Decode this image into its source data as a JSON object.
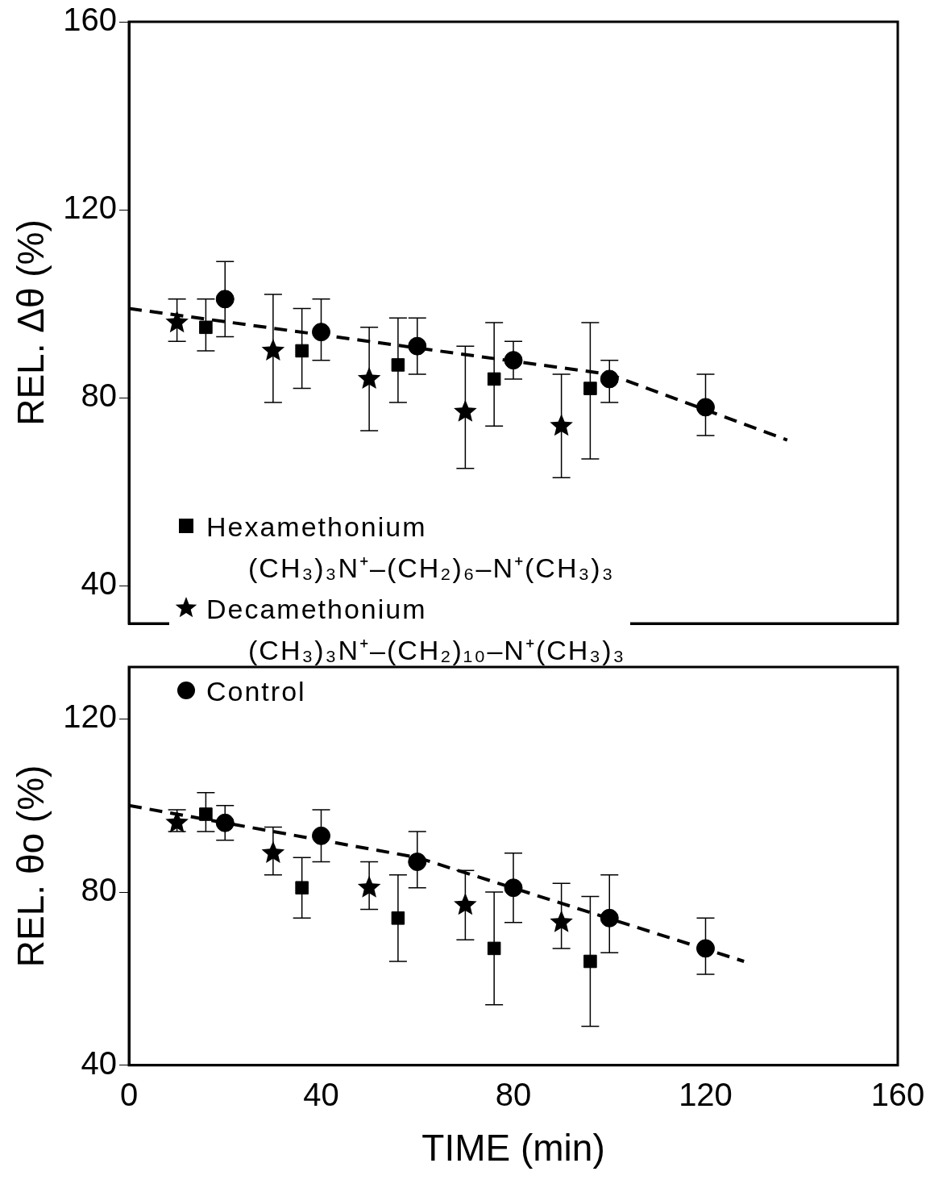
{
  "chart_data": [
    {
      "type": "scatter",
      "ylabel": "REL. Δθ (%)",
      "xlim": [
        0,
        160
      ],
      "xticks": [
        0,
        40,
        80,
        120,
        160
      ],
      "ylim": [
        32,
        160
      ],
      "yticks": [
        40,
        80,
        120,
        160
      ],
      "tick_labels": "y",
      "grid": false,
      "legend": "bottom left",
      "series": [
        {
          "name": "Hexamethonium\n(CH₃)₃N⁺–(CH₂)₆–N⁺(CH₃)₃",
          "color": "#000000",
          "marker": "square",
          "x": [
            16,
            36,
            56,
            76,
            96
          ],
          "values": [
            95,
            90,
            87,
            84,
            82
          ],
          "errors": [
            [
              90,
              101
            ],
            [
              82,
              99
            ],
            [
              79,
              97
            ],
            [
              74,
              96
            ],
            [
              67,
              96
            ]
          ]
        },
        {
          "name": "Decamethonium\n(CH₃)₃N⁺–(CH₂)₁₀–N⁺(CH₃)₃",
          "color": "#000000",
          "marker": "star",
          "x": [
            10,
            30,
            50,
            70,
            90
          ],
          "values": [
            96,
            90,
            84,
            77,
            74
          ],
          "errors": [
            [
              92,
              101
            ],
            [
              79,
              102
            ],
            [
              73,
              95
            ],
            [
              65,
              91
            ],
            [
              63,
              85
            ]
          ]
        },
        {
          "name": "Control",
          "color": "#000000",
          "marker": "circle",
          "x": [
            20,
            40,
            60,
            80,
            100,
            120
          ],
          "values": [
            101,
            94,
            91,
            88,
            84,
            78
          ],
          "errors": [
            [
              93,
              109
            ],
            [
              88,
              101
            ],
            [
              85,
              97
            ],
            [
              84,
              92
            ],
            [
              79,
              88
            ],
            [
              72,
              85
            ]
          ]
        },
        {
          "type": "line",
          "color": "#000000",
          "marker": "none",
          "line_style": "dashed",
          "x": [
            0,
            100,
            137
          ],
          "values": [
            99,
            85,
            71
          ]
        }
      ]
    },
    {
      "type": "scatter",
      "ylabel": "REL. θo (%)",
      "xlabel": "TIME (min)",
      "xlim": [
        0,
        160
      ],
      "xticks": [
        0,
        40,
        80,
        120,
        160
      ],
      "ylim": [
        40,
        132
      ],
      "yticks": [
        40,
        80,
        120
      ],
      "grid": false,
      "series": [
        {
          "color": "#000000",
          "marker": "square",
          "x": [
            16,
            36,
            56,
            76,
            96
          ],
          "values": [
            98,
            81,
            74,
            67,
            64
          ],
          "errors": [
            [
              94,
              103
            ],
            [
              74,
              88
            ],
            [
              64,
              84
            ],
            [
              54,
              80
            ],
            [
              49,
              79
            ]
          ]
        },
        {
          "color": "#000000",
          "marker": "star",
          "x": [
            10,
            30,
            50,
            70,
            90
          ],
          "values": [
            96,
            89,
            81,
            77,
            73
          ],
          "errors": [
            [
              94,
              99
            ],
            [
              84,
              95
            ],
            [
              76,
              87
            ],
            [
              69,
              85
            ],
            [
              67,
              82
            ]
          ]
        },
        {
          "color": "#000000",
          "marker": "circle",
          "x": [
            20,
            40,
            60,
            80,
            100,
            120
          ],
          "values": [
            96,
            93,
            87,
            81,
            74,
            67
          ],
          "errors": [
            [
              92,
              100
            ],
            [
              87,
              99
            ],
            [
              81,
              94
            ],
            [
              73,
              89
            ],
            [
              66,
              84
            ],
            [
              61,
              74
            ]
          ]
        },
        {
          "type": "line",
          "color": "#000000",
          "marker": "none",
          "line_style": "dashed",
          "x": [
            0,
            60,
            128
          ],
          "values": [
            100,
            88,
            64
          ]
        }
      ]
    }
  ]
}
